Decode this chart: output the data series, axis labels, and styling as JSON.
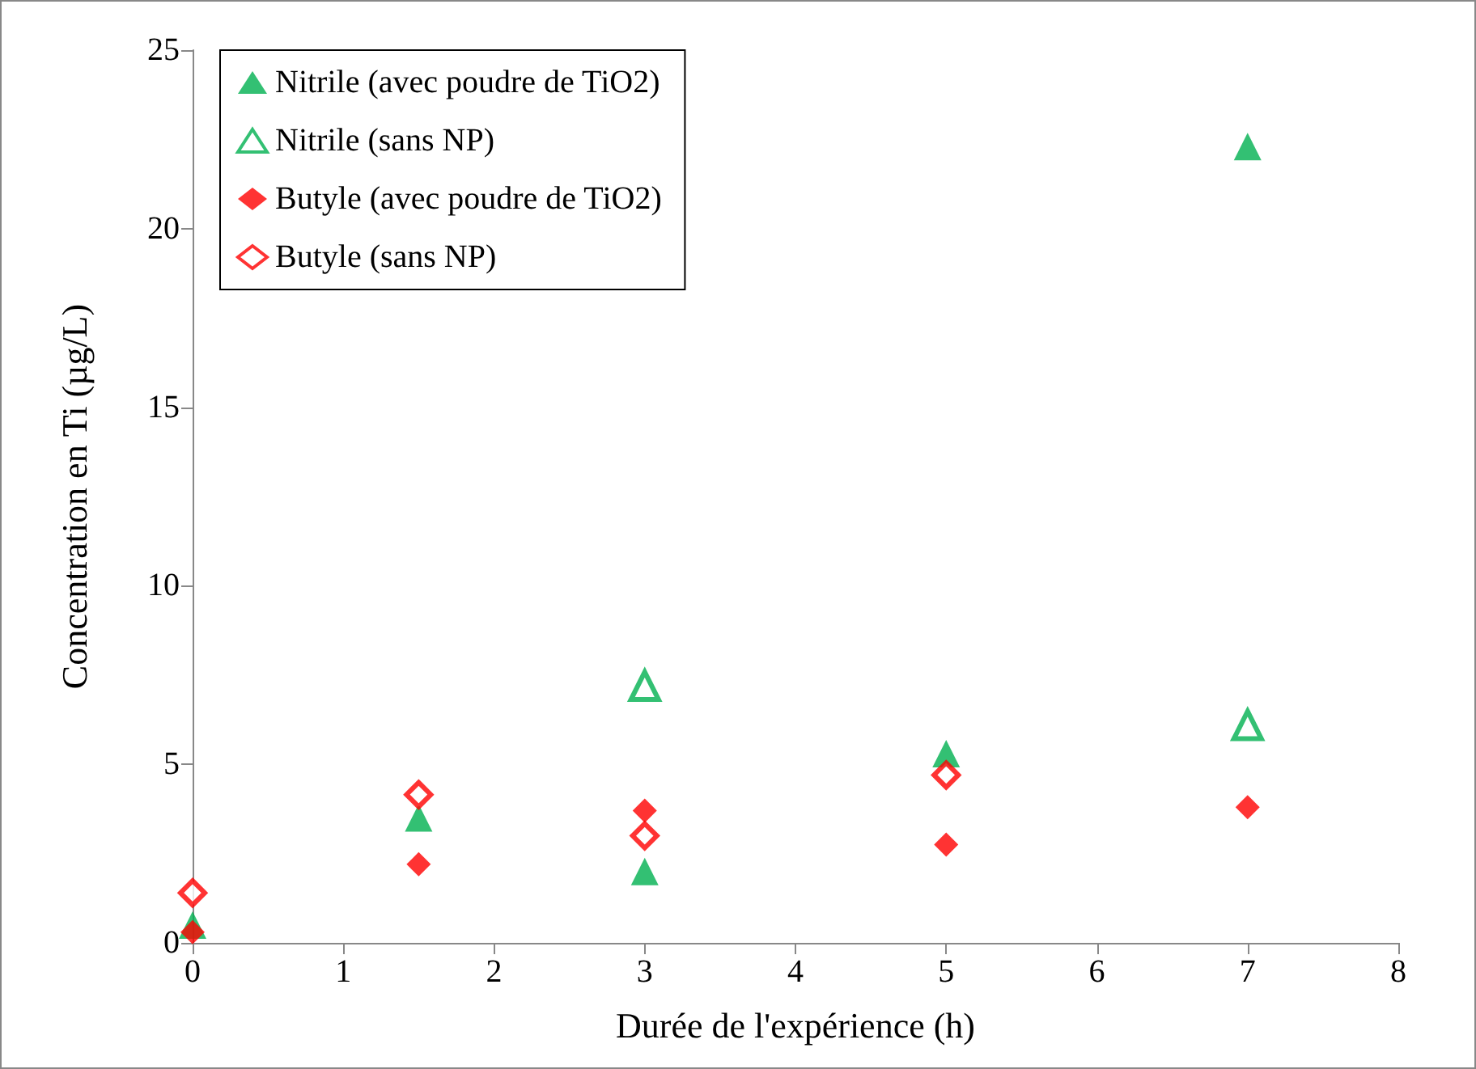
{
  "chart_data": {
    "type": "scatter",
    "xlabel": "Durée de l'expérience (h)",
    "ylabel": "Concentration en Ti (µg/L)",
    "x": [
      0,
      1.5,
      3,
      5,
      7
    ],
    "series": [
      {
        "name": "Nitrile (avec poudre de TiO2)",
        "color": "#00b050",
        "marker": "triangle",
        "values": [
          0.5,
          3.5,
          2.0,
          5.3,
          22.3
        ]
      },
      {
        "name": "Nitrile (sans NP)",
        "color": "#00b050",
        "marker": "triangle-open",
        "values": [
          null,
          null,
          7.2,
          null,
          6.1
        ]
      },
      {
        "name": "Butyle (avec poudre de TiO2)",
        "color": "#ff0000",
        "marker": "diamond",
        "values": [
          0.3,
          2.2,
          3.7,
          2.75,
          3.8
        ]
      },
      {
        "name": "Butyle (sans NP)",
        "color": "#ff0000",
        "marker": "diamond-open",
        "values": [
          1.4,
          4.15,
          3.0,
          4.7,
          null
        ]
      }
    ],
    "xlim": [
      0,
      8
    ],
    "xticks": [
      0,
      1,
      2,
      3,
      4,
      5,
      6,
      7,
      8
    ],
    "ylim": [
      0,
      25
    ],
    "yticks": [
      0,
      5,
      10,
      15,
      20,
      25
    ],
    "grid": false,
    "legend": "top left"
  }
}
